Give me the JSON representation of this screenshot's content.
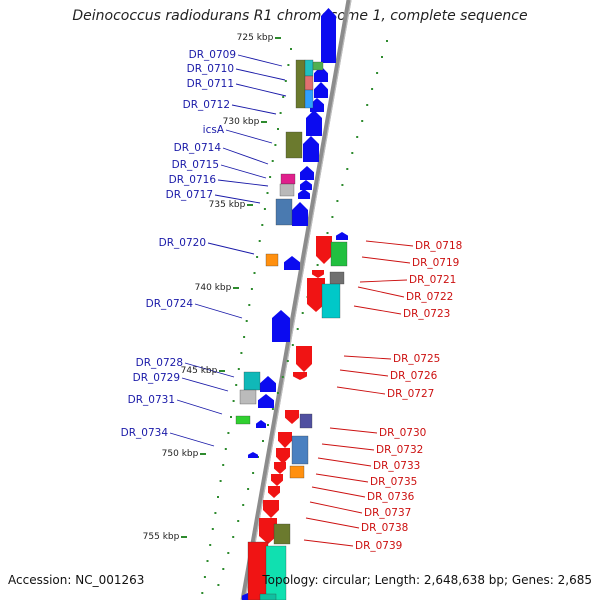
{
  "title": "Deinococcus radiodurans R1 chromosome 1, complete sequence",
  "footer": {
    "accession": "Accession: NC_001263",
    "topology": "Topology: circular; Length: 2,648,638 bp; Genes: 2,685"
  },
  "colors": {
    "left_label": "#1a1aa8",
    "right_label": "#cc1111",
    "backbone": "#8c8c8c",
    "tick": "#2e8b2e",
    "scale_text": "#222222"
  },
  "scale_ticks": [
    "725 kbp",
    "730 kbp",
    "735 kbp",
    "740 kbp",
    "745 kbp",
    "750 kbp",
    "755 kbp"
  ],
  "left_genes": [
    "DR_0709",
    "DR_0710",
    "DR_0711",
    "DR_0712",
    "icsA",
    "DR_0714",
    "DR_0715",
    "DR_0716",
    "DR_0717",
    "DR_0720",
    "DR_0724",
    "DR_0728",
    "DR_0729",
    "DR_0731",
    "DR_0734"
  ],
  "right_genes": [
    "DR_0718",
    "DR_0719",
    "DR_0721",
    "DR_0722",
    "DR_0723",
    "DR_0725",
    "DR_0726",
    "DR_0727",
    "DR_0730",
    "DR_0732",
    "DR_0733",
    "DR_0735",
    "DR_0736",
    "DR_0737",
    "DR_0738",
    "DR_0739"
  ]
}
